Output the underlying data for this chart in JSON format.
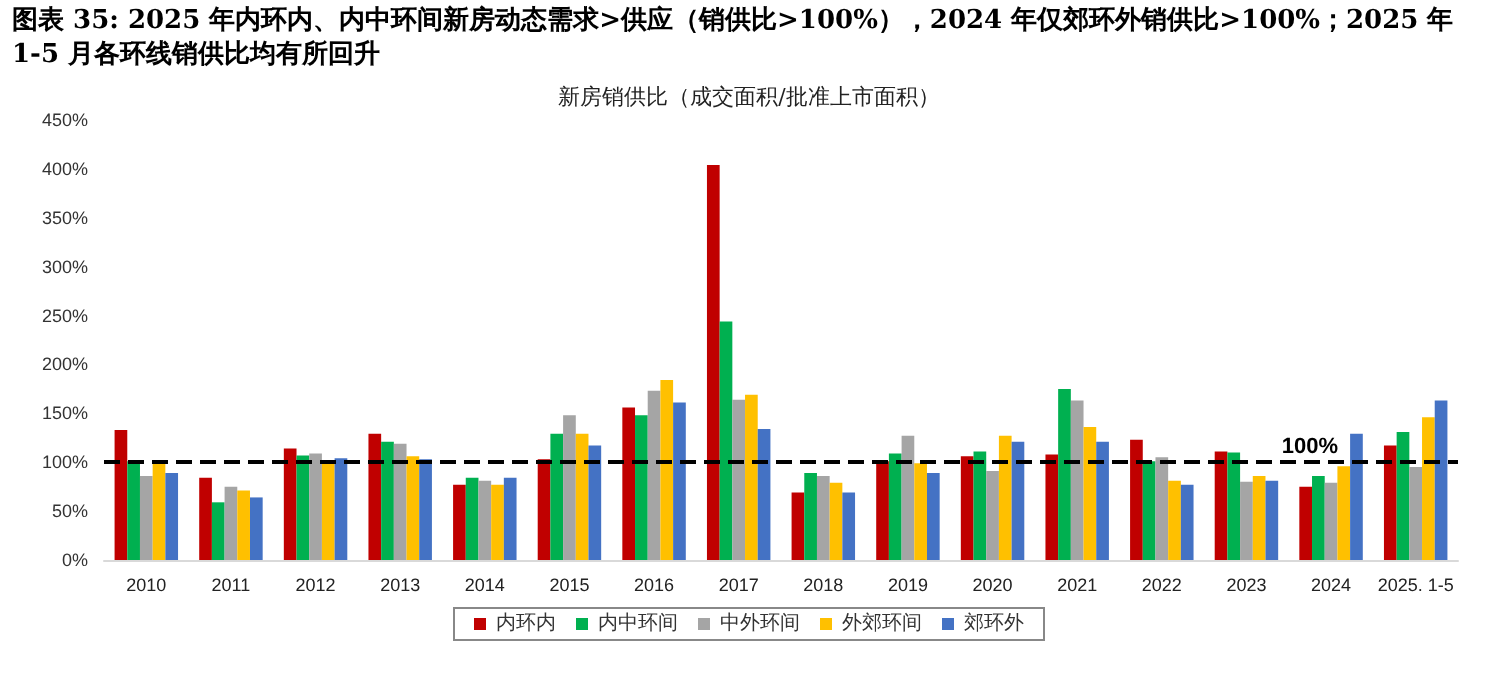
{
  "chart_data": {
    "type": "bar",
    "title": "图表 35: 2025 年内环内、内中环间新房动态需求>供应（销供比>100%），2024 年仅郊环外销供比>100%；2025 年 1-5 月各环线销供比均有所回升",
    "subtitle": "新房销供比（成交面积/批准上市面积）",
    "categories": [
      "2010",
      "2011",
      "2012",
      "2013",
      "2014",
      "2015",
      "2016",
      "2017",
      "2018",
      "2019",
      "2020",
      "2021",
      "2022",
      "2023",
      "2024",
      "2025. 1-5"
    ],
    "series": [
      {
        "name": "内环内",
        "color": "#c00000",
        "values": [
          133,
          84,
          114,
          129,
          77,
          103,
          156,
          404,
          69,
          101,
          106,
          108,
          123,
          111,
          75,
          117
        ]
      },
      {
        "name": "内中环间",
        "color": "#00b050",
        "values": [
          101,
          59,
          107,
          121,
          84,
          129,
          148,
          244,
          89,
          109,
          111,
          175,
          101,
          110,
          86,
          131
        ]
      },
      {
        "name": "中外环间",
        "color": "#a5a5a5",
        "values": [
          86,
          75,
          109,
          119,
          81,
          148,
          173,
          164,
          86,
          127,
          91,
          163,
          105,
          80,
          79,
          95
        ]
      },
      {
        "name": "外郊环间",
        "color": "#ffc000",
        "values": [
          100,
          71,
          101,
          106,
          77,
          129,
          184,
          169,
          79,
          99,
          127,
          136,
          81,
          86,
          96,
          146
        ]
      },
      {
        "name": "郊环外",
        "color": "#4472c4",
        "values": [
          89,
          64,
          104,
          103,
          84,
          117,
          161,
          134,
          69,
          89,
          121,
          121,
          77,
          81,
          129,
          163
        ]
      }
    ],
    "ylim": [
      0,
      450
    ],
    "yticks": [
      {
        "value": 0,
        "label": "0%"
      },
      {
        "value": 50,
        "label": "50%"
      },
      {
        "value": 100,
        "label": "100%"
      },
      {
        "value": 150,
        "label": "150%"
      },
      {
        "value": 200,
        "label": "200%"
      },
      {
        "value": 250,
        "label": "250%"
      },
      {
        "value": 300,
        "label": "300%"
      },
      {
        "value": 350,
        "label": "350%"
      },
      {
        "value": 400,
        "label": "400%"
      },
      {
        "value": 450,
        "label": "450%"
      }
    ],
    "ref_lines": [
      {
        "axis": "y",
        "value": 100,
        "label": "100%",
        "color": "#000000",
        "line_style": "dashed"
      }
    ],
    "grid": false,
    "legend": "bottom"
  }
}
